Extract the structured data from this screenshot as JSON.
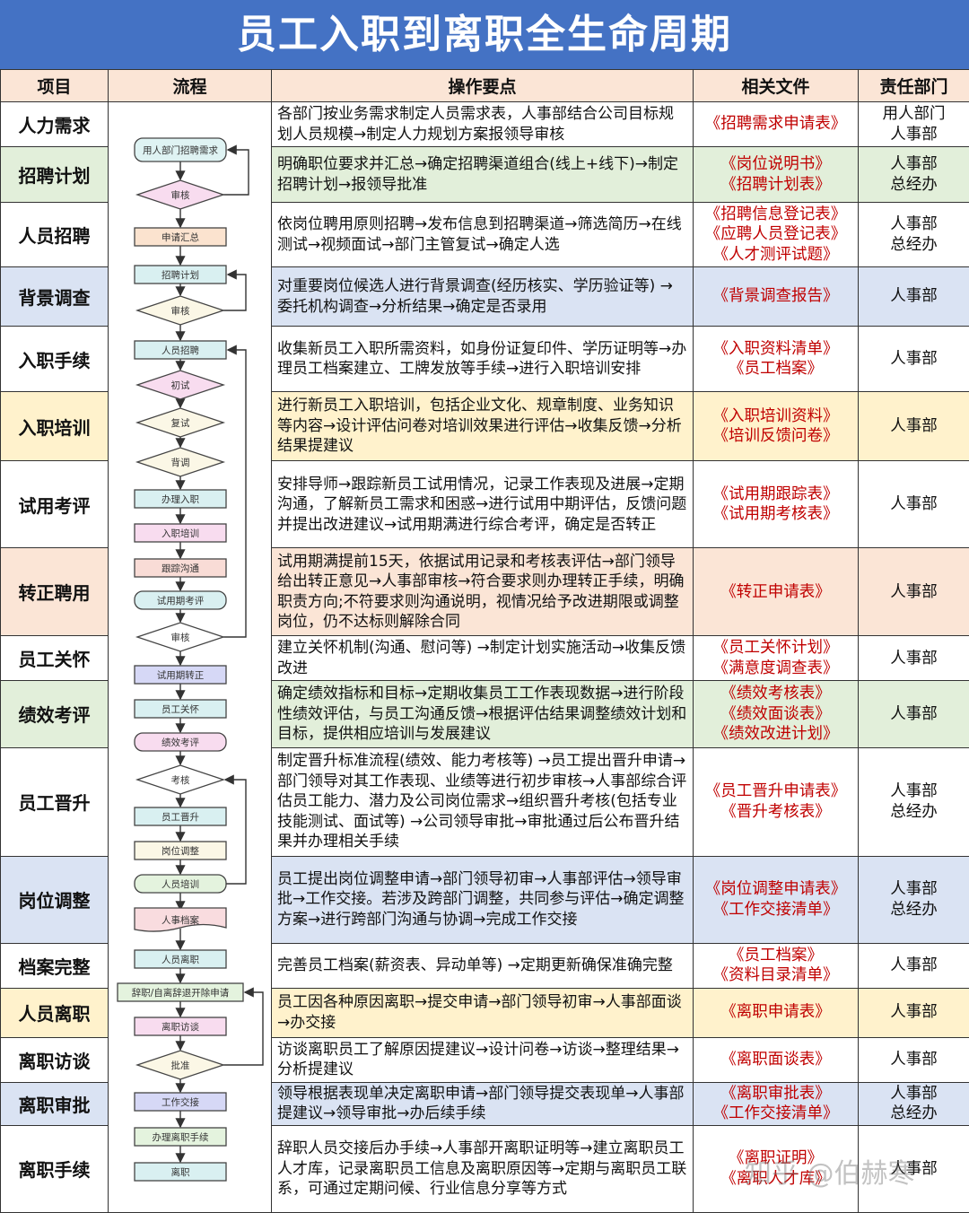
{
  "title": "员工入职到离职全生命周期",
  "headers": [
    "项目",
    "流程",
    "操作要点",
    "相关文件",
    "责任部门"
  ],
  "colors": {
    "title_bg": "#4472c4",
    "header_bg": "#fbe5d6",
    "doc_text": "#c00000",
    "white": "#ffffff",
    "green": "#e2efda",
    "blue": "#dae3f3",
    "yellow": "#fff2cc",
    "pink": "#fbe5d6"
  },
  "rows": [
    {
      "item": "人力需求",
      "color": "white",
      "steps": "各部门按业务需求制定人员需求表，人事部结合公司目标规划人员规模→制定人力规划方案报领导审核",
      "docs": [
        "《招聘需求申请表》"
      ],
      "dept": [
        "用人部门",
        "人事部"
      ]
    },
    {
      "item": "招聘计划",
      "color": "green",
      "steps": "明确职位要求并汇总→确定招聘渠道组合(线上+线下)→制定招聘计划→报领导批准",
      "docs": [
        "《岗位说明书》",
        "《招聘计划表》"
      ],
      "dept": [
        "人事部",
        "总经办"
      ]
    },
    {
      "item": "人员招聘",
      "color": "white",
      "steps": "依岗位聘用原则招聘→发布信息到招聘渠道→筛选简历→在线测试→视频面试→部门主管复试→确定人选",
      "docs": [
        "《招聘信息登记表》",
        "《应聘人员登记表》",
        "《人才测评试题》"
      ],
      "dept": [
        "人事部",
        "总经办"
      ]
    },
    {
      "item": "背景调查",
      "color": "blue",
      "steps": "对重要岗位候选人进行背景调查(经历核实、学历验证等) →委托机构调查→分析结果→确定是否录用",
      "docs": [
        "《背景调查报告》"
      ],
      "dept": [
        "人事部"
      ]
    },
    {
      "item": "入职手续",
      "color": "white",
      "steps": "收集新员工入职所需资料，如身份证复印件、学历证明等→办理员工档案建立、工牌发放等手续→进行入职培训安排",
      "docs": [
        "《入职资料清单》",
        "《员工档案》"
      ],
      "dept": [
        "人事部"
      ]
    },
    {
      "item": "入职培训",
      "color": "yellow",
      "steps": "进行新员工入职培训，包括企业文化、规章制度、业务知识等内容→设计评估问卷对培训效果进行评估→收集反馈→分析结果提建议",
      "docs": [
        "《入职培训资料》",
        "《培训反馈问卷》"
      ],
      "dept": [
        "人事部"
      ]
    },
    {
      "item": "试用考评",
      "color": "white",
      "steps": "安排导师→跟踪新员工试用情况，记录工作表现及进展→定期沟通，了解新员工需求和困惑→进行试用中期评估，反馈问题并提出改进建议→试用期满进行综合考评，确定是否转正",
      "docs": [
        "《试用期跟踪表》",
        "《试用期考核表》"
      ],
      "dept": [
        "人事部"
      ]
    },
    {
      "item": "转正聘用",
      "color": "pink",
      "steps": "试用期满提前15天，依据试用记录和考核表评估→部门领导给出转正意见→人事部审核→符合要求则办理转正手续，明确职责方向;不符要求则沟通说明，视情况给予改进期限或调整岗位，仍不达标则解除合同",
      "docs": [
        "《转正申请表》"
      ],
      "dept": [
        "人事部"
      ]
    },
    {
      "item": "员工关怀",
      "color": "white",
      "steps": "建立关怀机制(沟通、慰问等) →制定计划实施活动→收集反馈改进",
      "docs": [
        "《员工关怀计划》",
        "《满意度调查表》"
      ],
      "dept": [
        "人事部"
      ]
    },
    {
      "item": "绩效考评",
      "color": "green",
      "steps": "确定绩效指标和目标→定期收集员工工作表现数据→进行阶段性绩效评估，与员工沟通反馈→根据评估结果调整绩效计划和目标，提供相应培训与发展建议",
      "docs": [
        "《绩效考核表》",
        "《绩效面谈表》",
        "《绩效改进计划》"
      ],
      "dept": [
        "人事部"
      ]
    },
    {
      "item": "员工晋升",
      "color": "white",
      "steps": "制定晋升标准流程(绩效、能力考核等) →员工提出晋升申请→部门领导对其工作表现、业绩等进行初步审核→人事部综合评估员工能力、潜力及公司岗位需求→组织晋升考核(包括专业技能测试、面试等) →公司领导审批→审批通过后公布晋升结果并办理相关手续",
      "docs": [
        "《员工晋升申请表》",
        "《晋升考核表》"
      ],
      "dept": [
        "人事部",
        "总经办"
      ]
    },
    {
      "item": "岗位调整",
      "color": "blue",
      "steps": "员工提出岗位调整申请→部门领导初审→人事部评估→领导审批→工作交接。若涉及跨部门调整，共同参与评估→确定调整方案→进行跨部门沟通与协调→完成工作交接",
      "docs": [
        "《岗位调整申请表》",
        "《工作交接清单》"
      ],
      "dept": [
        "人事部",
        "总经办"
      ]
    },
    {
      "item": "档案完整",
      "color": "white",
      "steps": "完善员工档案(薪资表、异动单等) →定期更新确保准确完整",
      "docs": [
        "《员工档案》",
        "《资料目录清单》"
      ],
      "dept": [
        "人事部"
      ]
    },
    {
      "item": "人员离职",
      "color": "yellow",
      "steps": "员工因各种原因离职→提交申请→部门领导初审→人事部面谈→办交接",
      "docs": [
        "《离职申请表》"
      ],
      "dept": [
        "人事部"
      ]
    },
    {
      "item": "离职访谈",
      "color": "white",
      "steps": "访谈离职员工了解原因提建议→设计问卷→访谈→整理结果→分析提建议",
      "docs": [
        "《离职面谈表》"
      ],
      "dept": [
        "人事部"
      ]
    },
    {
      "item": "离职审批",
      "color": "blue",
      "steps": "领导根据表现单决定离职申请→部门领导提交表现单→人事部提建议→领导审批→办后续手续",
      "docs": [
        "《离职审批表》",
        "《工作交接清单》"
      ],
      "dept": [
        "人事部",
        "总经办"
      ]
    },
    {
      "item": "离职手续",
      "color": "white",
      "steps": "辞职人员交接后办手续→人事部开离职证明等→建立离职员工人才库，记录离职员工信息及离职原因等→定期与离职员工联系，可通过定期问候、行业信息分享等方式",
      "docs": [
        "《离职证明》",
        "《离职人才库》"
      ],
      "dept": [
        "人事部"
      ]
    }
  ],
  "flow": [
    {
      "label": "用人部门招聘需求",
      "shape": "rounded",
      "fill": "#dff3f3"
    },
    {
      "label": "审核",
      "shape": "diamond",
      "fill": "#f8dcef"
    },
    {
      "label": "申请汇总",
      "shape": "rect",
      "fill": "#fbe3cf"
    },
    {
      "label": "招聘计划",
      "shape": "rect",
      "fill": "#d9f0f1"
    },
    {
      "label": "审核",
      "shape": "diamond",
      "fill": "#fbf7e6"
    },
    {
      "label": "人员招聘",
      "shape": "rect",
      "fill": "#d9f0f1"
    },
    {
      "label": "初试",
      "shape": "diamond",
      "fill": "#f8dcef"
    },
    {
      "label": "复试",
      "shape": "diamond",
      "fill": "#fbf7e6"
    },
    {
      "label": "背调",
      "shape": "diamond",
      "fill": "#fbf7e6"
    },
    {
      "label": "办理入职",
      "shape": "rect",
      "fill": "#d9f0f1"
    },
    {
      "label": "入职培训",
      "shape": "rect",
      "fill": "#f8dcef"
    },
    {
      "label": "跟踪沟通",
      "shape": "rect",
      "fill": "#f9dcd6"
    },
    {
      "label": "试用期考评",
      "shape": "rounded",
      "fill": "#d9f0f1"
    },
    {
      "label": "审核",
      "shape": "diamond",
      "fill": "#ffffff"
    },
    {
      "label": "试用期转正",
      "shape": "rect",
      "fill": "#d6d8f6"
    },
    {
      "label": "员工关怀",
      "shape": "rect",
      "fill": "#d9f0f1"
    },
    {
      "label": "绩效考评",
      "shape": "rounded",
      "fill": "#f8dcef"
    },
    {
      "label": "考核",
      "shape": "diamond",
      "fill": "#ffffff"
    },
    {
      "label": "员工晋升",
      "shape": "rect",
      "fill": "#d9f0f1"
    },
    {
      "label": "岗位调整",
      "shape": "rect",
      "fill": "#fbf7e6"
    },
    {
      "label": "人员培训",
      "shape": "rounded",
      "fill": "#e4f3de"
    },
    {
      "label": "人事档案",
      "shape": "document",
      "fill": "#f9dcdf"
    },
    {
      "label": "人员离职",
      "shape": "rect",
      "fill": "#d9f0f1"
    },
    {
      "label": "辞职/自离辞退开除申请",
      "shape": "rect",
      "fill": "#e4f3de"
    },
    {
      "label": "离职访谈",
      "shape": "rect",
      "fill": "#f8dcef"
    },
    {
      "label": "批准",
      "shape": "diamond",
      "fill": "#fbf7e6"
    },
    {
      "label": "工作交接",
      "shape": "rect",
      "fill": "#d6d8f6"
    },
    {
      "label": "办理离职手续",
      "shape": "rect",
      "fill": "#e4f3de"
    },
    {
      "label": "离职",
      "shape": "rect",
      "fill": "#d9f0f1"
    }
  ],
  "watermark": "知乎 @伯赫寒"
}
